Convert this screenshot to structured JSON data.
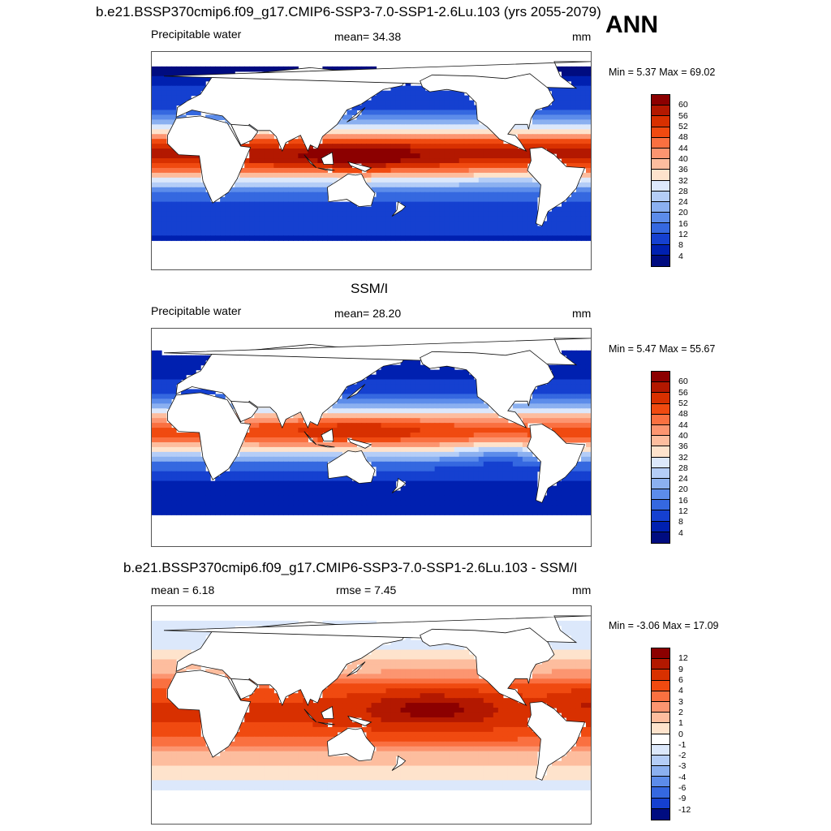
{
  "header": {
    "title": "b.e21.BSSP370cmip6.f09_g17.CMIP6-SSP3-7.0-SSP1-2.6Lu.103 (yrs 2055-2079)",
    "season": "ANN"
  },
  "panels": [
    {
      "id": "model",
      "subtitle": "",
      "left_label": "Precipitable water",
      "center_label": "mean=  34.38",
      "units": "mm",
      "minmax": "Min =   5.37 Max =  69.02",
      "field": "model"
    },
    {
      "id": "obs",
      "subtitle": "SSM/I",
      "left_label": "Precipitable water",
      "center_label": "mean=  28.20",
      "units": "mm",
      "minmax": "Min =   5.47 Max =  55.67",
      "field": "obs"
    },
    {
      "id": "diff",
      "subtitle": "b.e21.BSSP370cmip6.f09_g17.CMIP6-SSP3-7.0-SSP1-2.6Lu.103 - SSM/I",
      "left_label": "mean =   6.18",
      "center_label": "rmse =   7.45",
      "units": "mm",
      "minmax": "Min =  -3.06 Max =  17.09",
      "field": "diff"
    }
  ],
  "colorbars": {
    "abs": {
      "labels": [
        "60",
        "56",
        "52",
        "48",
        "44",
        "40",
        "36",
        "32",
        "28",
        "24",
        "20",
        "16",
        "12",
        "8",
        "4"
      ],
      "colors": [
        "#8c0000",
        "#b31800",
        "#d83000",
        "#f04a10",
        "#fa7040",
        "#fc9570",
        "#fdbd9e",
        "#fee3cc",
        "#dce8fb",
        "#b4cdf7",
        "#8bb0f0",
        "#5c8cea",
        "#3568e0",
        "#1540d0",
        "#0020b0",
        "#000c80"
      ]
    },
    "diff": {
      "labels": [
        "12",
        "9",
        "6",
        "4",
        "3",
        "2",
        "1",
        "0",
        "-1",
        "-2",
        "-3",
        "-4",
        "-6",
        "-9",
        "-12"
      ],
      "colors": [
        "#8c0000",
        "#b31800",
        "#d83000",
        "#f04a10",
        "#fa7040",
        "#fc9570",
        "#fdbd9e",
        "#fee3cc",
        "#ffffff",
        "#dce8fb",
        "#b4cdf7",
        "#8bb0f0",
        "#5c8cea",
        "#3568e0",
        "#1540d0",
        "#000c80"
      ]
    }
  }
}
